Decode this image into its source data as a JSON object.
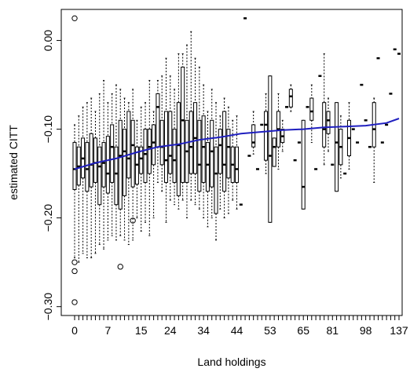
{
  "chart_data": {
    "type": "boxplot",
    "xlabel": "Land holdings",
    "ylabel": "estimated CITT",
    "ylim": [
      -0.31,
      0.035
    ],
    "x_tick_labels": [
      "0",
      "7",
      "15",
      "24",
      "34",
      "44",
      "53",
      "65",
      "81",
      "98",
      "137"
    ],
    "y_ticks": [
      -0.3,
      -0.2,
      -0.1,
      0.0
    ],
    "y_tick_labels": [
      "−0.30",
      "−0.20",
      "−0.10",
      "0.00"
    ],
    "box_color": "#000000",
    "trend_color": "#1f1fbf",
    "boxes": [
      {
        "min": -0.245,
        "q1": -0.168,
        "median": -0.145,
        "q3": -0.115,
        "max": -0.095
      },
      {
        "min": -0.25,
        "q1": -0.163,
        "median": -0.142,
        "q3": -0.12,
        "max": -0.085
      },
      {
        "min": -0.24,
        "q1": -0.155,
        "median": -0.133,
        "q3": -0.11,
        "max": -0.075
      },
      {
        "min": -0.245,
        "q1": -0.17,
        "median": -0.145,
        "q3": -0.115,
        "max": -0.07
      },
      {
        "min": -0.245,
        "q1": -0.165,
        "median": -0.14,
        "q3": -0.105,
        "max": -0.065
      },
      {
        "min": -0.24,
        "q1": -0.16,
        "median": -0.138,
        "q3": -0.11,
        "max": -0.08
      },
      {
        "min": -0.23,
        "q1": -0.185,
        "median": -0.142,
        "q3": -0.12,
        "max": -0.06
      },
      {
        "min": -0.235,
        "q1": -0.165,
        "median": -0.138,
        "q3": -0.115,
        "max": -0.045
      },
      {
        "min": -0.225,
        "q1": -0.172,
        "median": -0.15,
        "q3": -0.108,
        "max": -0.07
      },
      {
        "min": -0.22,
        "q1": -0.16,
        "median": -0.12,
        "q3": -0.095,
        "max": -0.06
      },
      {
        "min": -0.225,
        "q1": -0.185,
        "median": -0.15,
        "q3": -0.12,
        "max": -0.05
      },
      {
        "min": -0.22,
        "q1": -0.19,
        "median": -0.13,
        "q3": -0.09,
        "max": -0.055
      },
      {
        "min": -0.225,
        "q1": -0.175,
        "median": -0.125,
        "q3": -0.1,
        "max": -0.065
      },
      {
        "min": -0.23,
        "q1": -0.155,
        "median": -0.133,
        "q3": -0.08,
        "max": -0.07
      },
      {
        "min": -0.225,
        "q1": -0.165,
        "median": -0.118,
        "q3": -0.09,
        "max": -0.055
      },
      {
        "min": -0.2,
        "q1": -0.162,
        "median": -0.14,
        "q3": -0.12,
        "max": -0.09
      },
      {
        "min": -0.215,
        "q1": -0.15,
        "median": -0.133,
        "q3": -0.12,
        "max": -0.075
      },
      {
        "min": -0.205,
        "q1": -0.16,
        "median": -0.128,
        "q3": -0.1,
        "max": -0.07
      },
      {
        "min": -0.22,
        "q1": -0.15,
        "median": -0.12,
        "q3": -0.1,
        "max": -0.045
      },
      {
        "min": -0.2,
        "q1": -0.14,
        "median": -0.115,
        "q3": -0.095,
        "max": -0.08
      },
      {
        "min": -0.16,
        "q1": -0.12,
        "median": -0.075,
        "q3": -0.06,
        "max": -0.045
      },
      {
        "min": -0.17,
        "q1": -0.14,
        "median": -0.12,
        "q3": -0.09,
        "max": -0.04
      },
      {
        "min": -0.205,
        "q1": -0.16,
        "median": -0.135,
        "q3": -0.08,
        "max": -0.02
      },
      {
        "min": -0.18,
        "q1": -0.15,
        "median": -0.13,
        "q3": -0.08,
        "max": -0.04
      },
      {
        "min": -0.185,
        "q1": -0.16,
        "median": -0.135,
        "q3": -0.1,
        "max": -0.055
      },
      {
        "min": -0.19,
        "q1": -0.175,
        "median": -0.118,
        "q3": -0.07,
        "max": -0.015
      },
      {
        "min": -0.18,
        "q1": -0.16,
        "median": -0.09,
        "q3": -0.03,
        "max": -0.015
      },
      {
        "min": -0.2,
        "q1": -0.16,
        "median": -0.125,
        "q3": -0.09,
        "max": -0.005
      },
      {
        "min": -0.18,
        "q1": -0.15,
        "median": -0.12,
        "q3": -0.08,
        "max": 0.01
      },
      {
        "min": -0.185,
        "q1": -0.15,
        "median": -0.11,
        "q3": -0.07,
        "max": -0.02
      },
      {
        "min": -0.19,
        "q1": -0.17,
        "median": -0.14,
        "q3": -0.09,
        "max": -0.03
      },
      {
        "min": -0.2,
        "q1": -0.16,
        "median": -0.12,
        "q3": -0.085,
        "max": -0.05
      },
      {
        "min": -0.21,
        "q1": -0.17,
        "median": -0.14,
        "q3": -0.115,
        "max": -0.08
      },
      {
        "min": -0.2,
        "q1": -0.165,
        "median": -0.125,
        "q3": -0.09,
        "max": -0.055
      },
      {
        "min": -0.225,
        "q1": -0.195,
        "median": -0.15,
        "q3": -0.12,
        "max": -0.07
      },
      {
        "min": -0.19,
        "q1": -0.15,
        "median": -0.118,
        "q3": -0.1,
        "max": -0.085
      },
      {
        "min": -0.2,
        "q1": -0.17,
        "median": -0.14,
        "q3": -0.08,
        "max": -0.065
      },
      {
        "min": -0.195,
        "q1": -0.155,
        "median": -0.12,
        "q3": -0.1,
        "max": -0.075
      },
      {
        "min": -0.18,
        "q1": -0.16,
        "median": -0.14,
        "q3": -0.12,
        "max": -0.09
      },
      {
        "min": -0.19,
        "q1": -0.16,
        "median": -0.145,
        "q3": -0.12,
        "max": -0.085
      },
      {
        "min": -0.185,
        "q1": -0.185,
        "median": -0.185,
        "q3": -0.185,
        "max": -0.185
      },
      {
        "min": 0.025,
        "q1": 0.025,
        "median": 0.025,
        "q3": 0.025,
        "max": 0.025
      },
      {
        "min": -0.13,
        "q1": -0.13,
        "median": -0.13,
        "q3": -0.13,
        "max": -0.13
      },
      {
        "min": -0.128,
        "q1": -0.12,
        "median": -0.115,
        "q3": -0.095,
        "max": -0.08
      },
      {
        "min": -0.145,
        "q1": -0.145,
        "median": -0.145,
        "q3": -0.145,
        "max": -0.145
      },
      {
        "min": -0.095,
        "q1": -0.095,
        "median": -0.095,
        "q3": -0.095,
        "max": -0.095
      },
      {
        "min": -0.15,
        "q1": -0.135,
        "median": -0.095,
        "q3": -0.08,
        "max": -0.06
      },
      {
        "min": -0.205,
        "q1": -0.205,
        "median": -0.13,
        "q3": -0.04,
        "max": -0.04
      },
      {
        "min": -0.142,
        "q1": -0.142,
        "median": -0.12,
        "q3": -0.11,
        "max": -0.11
      },
      {
        "min": -0.145,
        "q1": -0.12,
        "median": -0.1,
        "q3": -0.08,
        "max": -0.06
      },
      {
        "min": -0.125,
        "q1": -0.115,
        "median": -0.108,
        "q3": -0.1,
        "max": -0.09
      },
      {
        "min": -0.075,
        "q1": -0.075,
        "median": -0.075,
        "q3": -0.075,
        "max": -0.075
      },
      {
        "min": -0.08,
        "q1": -0.075,
        "median": -0.063,
        "q3": -0.055,
        "max": -0.05
      },
      {
        "min": -0.135,
        "q1": -0.135,
        "median": -0.135,
        "q3": -0.135,
        "max": -0.135
      },
      {
        "min": -0.115,
        "q1": -0.115,
        "median": -0.115,
        "q3": -0.115,
        "max": -0.115
      },
      {
        "min": -0.19,
        "q1": -0.19,
        "median": -0.165,
        "q3": -0.09,
        "max": -0.09
      },
      {
        "min": -0.075,
        "q1": -0.075,
        "median": -0.075,
        "q3": -0.075,
        "max": -0.075
      },
      {
        "min": -0.115,
        "q1": -0.09,
        "median": -0.08,
        "q3": -0.065,
        "max": -0.05
      },
      {
        "min": -0.145,
        "q1": -0.145,
        "median": -0.145,
        "q3": -0.145,
        "max": -0.145
      },
      {
        "min": -0.04,
        "q1": -0.04,
        "median": -0.04,
        "q3": -0.04,
        "max": -0.04
      },
      {
        "min": -0.14,
        "q1": -0.12,
        "median": -0.1,
        "q3": -0.07,
        "max": -0.015
      },
      {
        "min": -0.125,
        "q1": -0.105,
        "median": -0.09,
        "q3": -0.08,
        "max": -0.065
      },
      {
        "min": -0.14,
        "q1": -0.14,
        "median": -0.14,
        "q3": -0.14,
        "max": -0.14
      },
      {
        "min": -0.17,
        "q1": -0.17,
        "median": -0.115,
        "q3": -0.07,
        "max": -0.07
      },
      {
        "min": -0.155,
        "q1": -0.14,
        "median": -0.12,
        "q3": -0.1,
        "max": -0.085
      },
      {
        "min": -0.15,
        "q1": -0.15,
        "median": -0.15,
        "q3": -0.15,
        "max": -0.15
      },
      {
        "min": -0.145,
        "q1": -0.13,
        "median": -0.11,
        "q3": -0.09,
        "max": -0.07
      },
      {
        "min": -0.1,
        "q1": -0.1,
        "median": -0.1,
        "q3": -0.1,
        "max": -0.1
      },
      {
        "min": -0.115,
        "q1": -0.115,
        "median": -0.115,
        "q3": -0.115,
        "max": -0.115
      },
      {
        "min": -0.05,
        "q1": -0.05,
        "median": -0.05,
        "q3": -0.05,
        "max": -0.05
      },
      {
        "min": -0.09,
        "q1": -0.09,
        "median": -0.09,
        "q3": -0.09,
        "max": -0.09
      },
      {
        "min": -0.12,
        "q1": -0.12,
        "median": -0.12,
        "q3": -0.12,
        "max": -0.12
      },
      {
        "min": -0.16,
        "q1": -0.12,
        "median": -0.1,
        "q3": -0.07,
        "max": -0.065
      },
      {
        "min": -0.02,
        "q1": -0.02,
        "median": -0.02,
        "q3": -0.02,
        "max": -0.02
      },
      {
        "min": -0.115,
        "q1": -0.115,
        "median": -0.115,
        "q3": -0.115,
        "max": -0.115
      },
      {
        "min": -0.095,
        "q1": -0.095,
        "median": -0.095,
        "q3": -0.095,
        "max": -0.095
      },
      {
        "min": -0.06,
        "q1": -0.06,
        "median": -0.06,
        "q3": -0.06,
        "max": -0.06
      },
      {
        "min": -0.01,
        "q1": -0.01,
        "median": -0.01,
        "q3": -0.01,
        "max": -0.01
      },
      {
        "min": -0.015,
        "q1": -0.015,
        "median": -0.015,
        "q3": -0.015,
        "max": -0.015
      }
    ],
    "outliers": [
      {
        "box": 0,
        "y": 0.025
      },
      {
        "box": 0,
        "y": -0.25
      },
      {
        "box": 0,
        "y": -0.26
      },
      {
        "box": 0,
        "y": -0.295
      },
      {
        "box": 11,
        "y": -0.255
      },
      {
        "box": 14,
        "y": -0.203
      }
    ],
    "trend": {
      "x": [
        0,
        5,
        10,
        15,
        20,
        25,
        30,
        35,
        40,
        45,
        50,
        55,
        60,
        65,
        70,
        75,
        78
      ],
      "y": [
        -0.145,
        -0.138,
        -0.133,
        -0.126,
        -0.12,
        -0.117,
        -0.112,
        -0.109,
        -0.105,
        -0.103,
        -0.101,
        -0.1,
        -0.098,
        -0.097,
        -0.096,
        -0.093,
        -0.088
      ]
    }
  }
}
